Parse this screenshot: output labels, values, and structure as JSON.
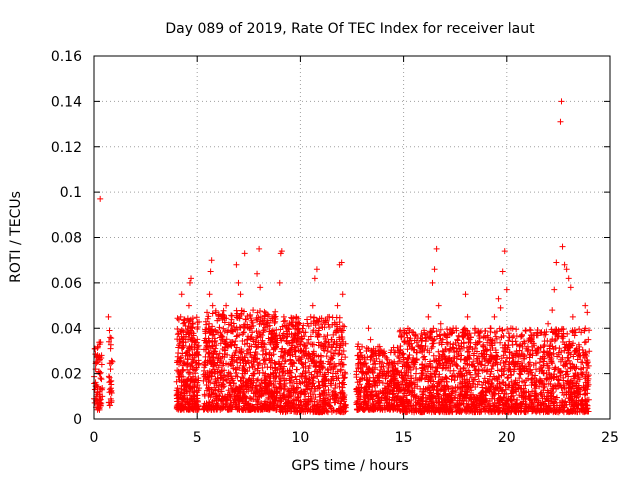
{
  "chart_data": {
    "type": "scatter",
    "title": "Day 089 of 2019, Rate Of TEC Index for receiver laut",
    "xlabel": "GPS time / hours",
    "ylabel": "ROTI / TECUs",
    "xlim": [
      0,
      25
    ],
    "ylim": [
      0,
      0.16
    ],
    "xticks": [
      0,
      5,
      10,
      15,
      20,
      25
    ],
    "xtick_labels": [
      "0",
      "5",
      "10",
      "15",
      "20",
      "25"
    ],
    "yticks": [
      0,
      0.02,
      0.04,
      0.06,
      0.08,
      0.1,
      0.12,
      0.14,
      0.16
    ],
    "ytick_labels": [
      "0",
      "0.02",
      "0.04",
      "0.06",
      "0.08",
      "0.1",
      "0.12",
      "0.14",
      "0.16"
    ],
    "grid": true,
    "marker": "+",
    "color": "#ff0000",
    "series": [
      {
        "name": "ROTI",
        "points": [
          [
            0.05,
            0.031
          ],
          [
            0.08,
            0.022
          ],
          [
            0.1,
            0.008
          ],
          [
            0.12,
            0.015
          ],
          [
            0.15,
            0.027
          ],
          [
            0.2,
            0.005
          ],
          [
            0.25,
            0.012
          ],
          [
            0.28,
            0.033
          ],
          [
            0.3,
            0.097
          ],
          [
            0.32,
            0.018
          ],
          [
            0.35,
            0.007
          ],
          [
            0.38,
            0.024
          ],
          [
            0.4,
            0.01
          ],
          [
            0.7,
            0.045
          ],
          [
            0.75,
            0.039
          ],
          [
            0.78,
            0.036
          ],
          [
            0.8,
            0.022
          ],
          [
            0.82,
            0.012
          ],
          [
            0.85,
            0.008
          ],
          [
            4.05,
            0.005
          ],
          [
            4.1,
            0.012
          ],
          [
            4.15,
            0.02
          ],
          [
            4.2,
            0.045
          ],
          [
            4.25,
            0.055
          ],
          [
            4.3,
            0.035
          ],
          [
            4.35,
            0.025
          ],
          [
            4.4,
            0.015
          ],
          [
            4.5,
            0.008
          ],
          [
            4.55,
            0.03
          ],
          [
            4.6,
            0.05
          ],
          [
            4.65,
            0.06
          ],
          [
            4.7,
            0.062
          ],
          [
            4.75,
            0.04
          ],
          [
            4.8,
            0.018
          ],
          [
            4.85,
            0.01
          ],
          [
            4.9,
            0.028
          ],
          [
            4.95,
            0.022
          ],
          [
            5.0,
            0.015
          ],
          [
            5.4,
            0.005
          ],
          [
            5.45,
            0.015
          ],
          [
            5.5,
            0.025
          ],
          [
            5.55,
            0.04
          ],
          [
            5.6,
            0.055
          ],
          [
            5.65,
            0.065
          ],
          [
            5.7,
            0.07
          ],
          [
            5.75,
            0.05
          ],
          [
            5.8,
            0.03
          ],
          [
            5.85,
            0.02
          ],
          [
            5.9,
            0.01
          ],
          [
            6.0,
            0.018
          ],
          [
            6.1,
            0.025
          ],
          [
            6.2,
            0.035
          ],
          [
            6.3,
            0.045
          ],
          [
            6.4,
            0.05
          ],
          [
            6.5,
            0.032
          ],
          [
            6.6,
            0.02
          ],
          [
            6.7,
            0.012
          ],
          [
            6.8,
            0.028
          ],
          [
            6.9,
            0.068
          ],
          [
            7.0,
            0.06
          ],
          [
            7.05,
            0.045
          ],
          [
            7.1,
            0.055
          ],
          [
            7.15,
            0.03
          ],
          [
            7.2,
            0.02
          ],
          [
            7.3,
            0.073
          ],
          [
            7.4,
            0.015
          ],
          [
            7.5,
            0.025
          ],
          [
            7.6,
            0.04
          ],
          [
            7.7,
            0.035
          ],
          [
            7.8,
            0.022
          ],
          [
            7.9,
            0.064
          ],
          [
            8.0,
            0.075
          ],
          [
            8.05,
            0.058
          ],
          [
            8.1,
            0.042
          ],
          [
            8.2,
            0.03
          ],
          [
            8.3,
            0.02
          ],
          [
            8.4,
            0.012
          ],
          [
            8.5,
            0.018
          ],
          [
            8.6,
            0.028
          ],
          [
            8.7,
            0.015
          ],
          [
            8.8,
            0.008
          ],
          [
            9.0,
            0.06
          ],
          [
            9.05,
            0.073
          ],
          [
            9.1,
            0.074
          ],
          [
            9.2,
            0.045
          ],
          [
            9.3,
            0.03
          ],
          [
            9.4,
            0.02
          ],
          [
            9.5,
            0.01
          ],
          [
            9.6,
            0.025
          ],
          [
            9.7,
            0.035
          ],
          [
            9.8,
            0.045
          ],
          [
            9.9,
            0.04
          ],
          [
            10.0,
            0.03
          ],
          [
            10.1,
            0.02
          ],
          [
            10.2,
            0.012
          ],
          [
            10.3,
            0.028
          ],
          [
            10.4,
            0.035
          ],
          [
            10.5,
            0.045
          ],
          [
            10.6,
            0.05
          ],
          [
            10.7,
            0.062
          ],
          [
            10.8,
            0.066
          ],
          [
            10.9,
            0.04
          ],
          [
            11.0,
            0.025
          ],
          [
            11.1,
            0.015
          ],
          [
            11.2,
            0.008
          ],
          [
            11.3,
            0.03
          ],
          [
            11.4,
            0.045
          ],
          [
            11.5,
            0.035
          ],
          [
            11.6,
            0.022
          ],
          [
            11.7,
            0.015
          ],
          [
            11.8,
            0.05
          ],
          [
            11.9,
            0.068
          ],
          [
            12.0,
            0.069
          ],
          [
            12.05,
            0.055
          ],
          [
            12.1,
            0.03
          ],
          [
            12.8,
            0.033
          ],
          [
            12.9,
            0.025
          ],
          [
            13.0,
            0.018
          ],
          [
            13.1,
            0.012
          ],
          [
            13.2,
            0.03
          ],
          [
            13.3,
            0.04
          ],
          [
            13.4,
            0.035
          ],
          [
            13.5,
            0.022
          ],
          [
            13.6,
            0.015
          ],
          [
            13.8,
            0.028
          ],
          [
            14.0,
            0.02
          ],
          [
            14.2,
            0.012
          ],
          [
            14.4,
            0.025
          ],
          [
            14.6,
            0.018
          ],
          [
            15.0,
            0.008
          ],
          [
            15.2,
            0.015
          ],
          [
            15.4,
            0.025
          ],
          [
            15.6,
            0.02
          ],
          [
            15.8,
            0.03
          ],
          [
            16.0,
            0.038
          ],
          [
            16.2,
            0.045
          ],
          [
            16.4,
            0.06
          ],
          [
            16.5,
            0.066
          ],
          [
            16.6,
            0.075
          ],
          [
            16.7,
            0.05
          ],
          [
            16.8,
            0.042
          ],
          [
            16.9,
            0.035
          ],
          [
            17.0,
            0.025
          ],
          [
            17.2,
            0.03
          ],
          [
            17.4,
            0.04
          ],
          [
            17.6,
            0.035
          ],
          [
            17.8,
            0.028
          ],
          [
            18.0,
            0.055
          ],
          [
            18.1,
            0.045
          ],
          [
            18.2,
            0.035
          ],
          [
            18.4,
            0.028
          ],
          [
            18.6,
            0.02
          ],
          [
            18.8,
            0.015
          ],
          [
            19.0,
            0.03
          ],
          [
            19.2,
            0.04
          ],
          [
            19.4,
            0.045
          ],
          [
            19.6,
            0.053
          ],
          [
            19.7,
            0.049
          ],
          [
            19.8,
            0.065
          ],
          [
            19.9,
            0.074
          ],
          [
            20.0,
            0.057
          ],
          [
            20.2,
            0.04
          ],
          [
            20.4,
            0.025
          ],
          [
            20.6,
            0.018
          ],
          [
            20.8,
            0.012
          ],
          [
            21.0,
            0.03
          ],
          [
            21.2,
            0.035
          ],
          [
            21.4,
            0.03
          ],
          [
            21.6,
            0.025
          ],
          [
            21.8,
            0.02
          ],
          [
            22.0,
            0.042
          ],
          [
            22.2,
            0.048
          ],
          [
            22.3,
            0.057
          ],
          [
            22.4,
            0.069
          ],
          [
            22.6,
            0.131
          ],
          [
            22.65,
            0.14
          ],
          [
            22.7,
            0.076
          ],
          [
            22.8,
            0.068
          ],
          [
            22.9,
            0.066
          ],
          [
            23.0,
            0.062
          ],
          [
            23.1,
            0.058
          ],
          [
            23.2,
            0.045
          ],
          [
            23.4,
            0.03
          ],
          [
            23.6,
            0.025
          ],
          [
            23.8,
            0.05
          ],
          [
            23.9,
            0.047
          ],
          [
            23.95,
            0.035
          ]
        ]
      }
    ],
    "dense_bands": [
      {
        "x_from": 0.0,
        "x_to": 0.4,
        "y_low": 0.004,
        "y_high": 0.034,
        "count": 60
      },
      {
        "x_from": 0.7,
        "x_to": 0.9,
        "y_low": 0.006,
        "y_high": 0.04,
        "count": 25
      },
      {
        "x_from": 4.0,
        "x_to": 5.1,
        "y_low": 0.004,
        "y_high": 0.045,
        "count": 320
      },
      {
        "x_from": 5.3,
        "x_to": 8.9,
        "y_low": 0.004,
        "y_high": 0.048,
        "count": 900
      },
      {
        "x_from": 8.95,
        "x_to": 12.2,
        "y_low": 0.003,
        "y_high": 0.045,
        "count": 750
      },
      {
        "x_from": 12.7,
        "x_to": 14.8,
        "y_low": 0.004,
        "y_high": 0.032,
        "count": 420
      },
      {
        "x_from": 14.8,
        "x_to": 24.0,
        "y_low": 0.003,
        "y_high": 0.04,
        "count": 2000
      }
    ]
  }
}
